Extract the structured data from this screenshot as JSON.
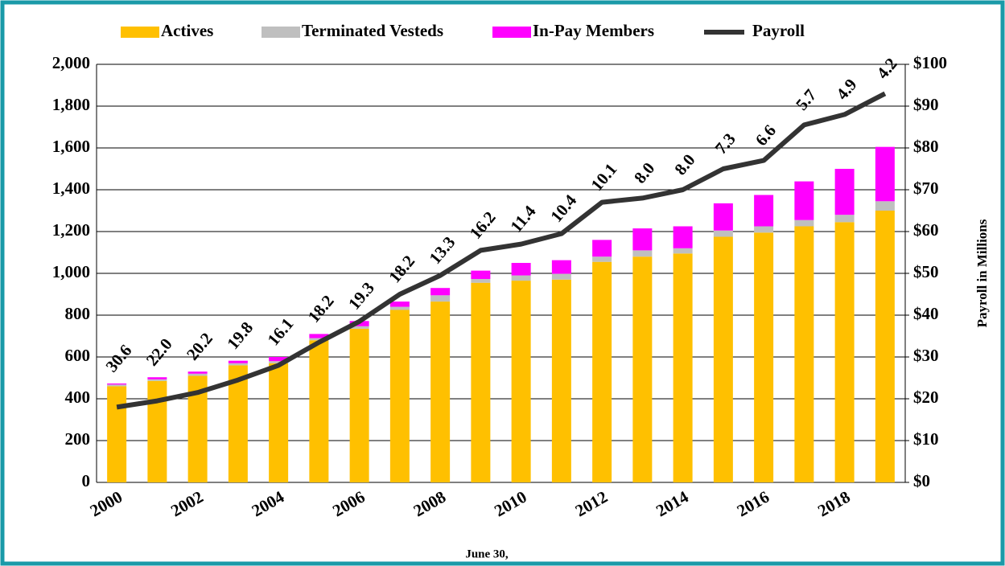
{
  "chart_data": {
    "type": "bar",
    "stacked": true,
    "categories": [
      "2000",
      null,
      "2002",
      null,
      "2004",
      null,
      "2006",
      null,
      "2008",
      null,
      "2010",
      null,
      "2012",
      null,
      "2014",
      null,
      "2016",
      null,
      "2018",
      null
    ],
    "series": [
      {
        "name": "Actives",
        "color": "#FFC000",
        "values": [
          460,
          485,
          510,
          560,
          570,
          680,
          735,
          825,
          865,
          955,
          965,
          970,
          1055,
          1080,
          1095,
          1175,
          1195,
          1225,
          1245,
          1300
        ]
      },
      {
        "name": "Terminated Vesteds",
        "color": "#BFBFBF",
        "values": [
          8,
          8,
          10,
          10,
          10,
          10,
          12,
          15,
          30,
          18,
          25,
          28,
          25,
          30,
          25,
          30,
          30,
          30,
          35,
          45
        ]
      },
      {
        "name": "In-Pay Members",
        "color": "#FF00FF",
        "values": [
          5,
          10,
          10,
          12,
          20,
          20,
          25,
          25,
          35,
          40,
          60,
          65,
          80,
          105,
          105,
          130,
          150,
          185,
          220,
          260
        ]
      },
      {
        "name": "Payroll",
        "color": "#333333",
        "type": "line",
        "axis": "y2",
        "values": [
          18,
          19.5,
          21.5,
          24.5,
          28,
          33.5,
          38.5,
          45,
          49.5,
          55.5,
          57,
          59.5,
          67,
          68,
          70,
          75,
          77,
          85.5,
          88,
          93
        ]
      }
    ],
    "annotations": [
      "30.6",
      "22.0",
      "20.2",
      "19.8",
      "16.1",
      "18.2",
      "19.3",
      "18.2",
      "13.3",
      "16.2",
      "11.4",
      "10.4",
      "10.1",
      "8.0",
      "8.0",
      "7.3",
      "6.6",
      "5.7",
      "4.9",
      "4.2"
    ],
    "x_label": "June 30,",
    "y2_label": "Payroll in Millions",
    "ylim": [
      0,
      2000
    ],
    "yticks": [
      0,
      200,
      400,
      600,
      800,
      {
        "value": 1000,
        "label": "1,000"
      },
      {
        "value": 1200,
        "label": "1,200"
      },
      {
        "value": 1400,
        "label": "1,400"
      },
      {
        "value": 1600,
        "label": "1,600"
      },
      {
        "value": 1800,
        "label": "1,800"
      },
      {
        "value": 2000,
        "label": "2,000"
      }
    ],
    "y2lim": [
      0,
      100
    ],
    "y2ticks": [
      {
        "value": 0,
        "label": "$0"
      },
      {
        "value": 10,
        "label": "$10"
      },
      {
        "value": 20,
        "label": "$20"
      },
      {
        "value": 30,
        "label": "$30"
      },
      {
        "value": 40,
        "label": "$40"
      },
      {
        "value": 50,
        "label": "$50"
      },
      {
        "value": 60,
        "label": "$60"
      },
      {
        "value": 70,
        "label": "$70"
      },
      {
        "value": 80,
        "label": "$80"
      },
      {
        "value": 90,
        "label": "$90"
      },
      {
        "value": 100,
        "label": "$100"
      }
    ],
    "grid": true,
    "legend": "top"
  }
}
